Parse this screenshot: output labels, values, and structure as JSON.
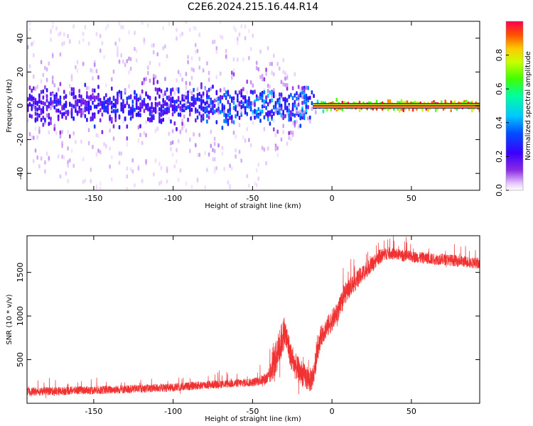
{
  "title": "C2E6.2024.215.16.44.R14",
  "chart_data": [
    {
      "type": "heatmap",
      "xlabel": "Height of straight line (km)",
      "ylabel": "Frequency (Hz)",
      "xlim": [
        -192,
        93
      ],
      "ylim": [
        -50,
        50
      ],
      "xticks": [
        -150,
        -100,
        -50,
        0,
        50
      ],
      "xtick_labels": [
        "-150",
        "-100",
        "-50",
        "0",
        "50"
      ],
      "yticks": [
        -40,
        -20,
        0,
        20,
        40
      ],
      "ytick_labels": [
        "-40",
        "-20",
        "0",
        "20",
        "40"
      ],
      "colorbar": {
        "label": "Normalized spectral amplitude",
        "range": [
          0,
          1
        ],
        "ticks": [
          0.0,
          0.2,
          0.4,
          0.6,
          0.8
        ],
        "tick_labels": [
          "0.0",
          "0.2",
          "0.4",
          "0.6",
          "0.8"
        ],
        "colormap": "rainbow (white-violet-blue-cyan-green-yellow-orange-red)"
      },
      "description_points": {
        "height_km": [
          -190,
          -150,
          -100,
          -50,
          -25,
          -10,
          0,
          10,
          50,
          93
        ],
        "dominant_frequency_hz": [
          0,
          0,
          0,
          0,
          0,
          0,
          0,
          0,
          0,
          0
        ],
        "peak_normalized_amplitude": [
          0.3,
          0.35,
          0.35,
          0.5,
          0.5,
          0.6,
          1.0,
          1.0,
          1.0,
          1.0
        ],
        "spread_hz": [
          50,
          50,
          50,
          50,
          20,
          5,
          2,
          2,
          2,
          2
        ]
      },
      "grid": false
    },
    {
      "type": "line",
      "xlabel": "Height of straight line (km)",
      "ylabel": "SNR (10 * v/v)",
      "xlim": [
        -192,
        93
      ],
      "ylim": [
        0,
        1920
      ],
      "xticks": [
        -150,
        -100,
        -50,
        0,
        50
      ],
      "xtick_labels": [
        "-150",
        "-100",
        "-50",
        "0",
        "50"
      ],
      "yticks": [
        500,
        1000,
        1500
      ],
      "ytick_labels": [
        "500",
        "1000",
        "1500"
      ],
      "color": "#f03232",
      "series": [
        {
          "x": [
            -192,
            -180,
            -170,
            -160,
            -150,
            -140,
            -130,
            -120,
            -110,
            -100,
            -90,
            -80,
            -70,
            -60,
            -50,
            -45,
            -40,
            -38,
            -36,
            -34,
            -32,
            -30,
            -28,
            -26,
            -24,
            -22,
            -20,
            -18,
            -16,
            -14,
            -12,
            -10,
            -8,
            -6,
            -4,
            -2,
            0,
            2,
            4,
            6,
            8,
            10,
            12,
            14,
            16,
            18,
            20,
            22,
            24,
            26,
            28,
            30,
            35,
            40,
            45,
            50,
            55,
            60,
            65,
            70,
            75,
            80,
            85,
            90,
            93
          ],
          "y": [
            130,
            140,
            140,
            150,
            150,
            155,
            160,
            170,
            175,
            180,
            195,
            210,
            220,
            230,
            240,
            260,
            290,
            380,
            480,
            600,
            700,
            820,
            700,
            550,
            450,
            400,
            360,
            320,
            290,
            260,
            300,
            500,
            700,
            800,
            850,
            900,
            950,
            1000,
            1060,
            1150,
            1250,
            1300,
            1350,
            1380,
            1420,
            1460,
            1500,
            1540,
            1580,
            1600,
            1650,
            1680,
            1720,
            1710,
            1690,
            1680,
            1670,
            1660,
            1650,
            1650,
            1640,
            1630,
            1620,
            1610,
            1600
          ],
          "noise": [
            80,
            80,
            80,
            80,
            80,
            80,
            80,
            80,
            80,
            80,
            80,
            80,
            80,
            80,
            80,
            90,
            150,
            220,
            300,
            350,
            350,
            320,
            280,
            260,
            260,
            250,
            250,
            240,
            240,
            230,
            240,
            220,
            200,
            200,
            200,
            210,
            210,
            200,
            200,
            200,
            200,
            200,
            190,
            180,
            180,
            170,
            170,
            160,
            150,
            150,
            140,
            140,
            120,
            110,
            110,
            110,
            110,
            110,
            110,
            110,
            110,
            110,
            110,
            110,
            110
          ]
        }
      ],
      "grid": false
    }
  ]
}
